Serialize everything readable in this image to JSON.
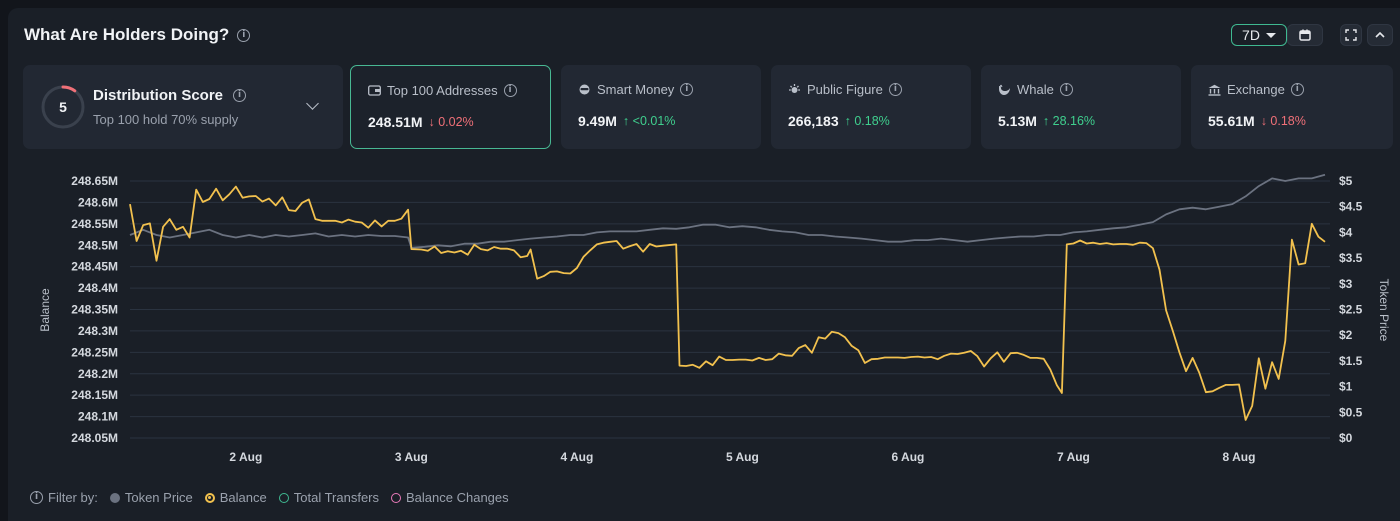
{
  "header": {
    "title": "What Are Holders Doing?",
    "range_label": "7D"
  },
  "distribution": {
    "score": "5",
    "title": "Distribution Score",
    "subtitle": "Top 100 hold 70% supply",
    "score_fraction": 0.1
  },
  "cards": [
    {
      "icon": "wallet-icon",
      "label": "Top 100 Addresses",
      "value": "248.51M",
      "change": "↓ 0.02%",
      "dir": "down"
    },
    {
      "icon": "smart-money-icon",
      "label": "Smart Money",
      "value": "9.49M",
      "change": "↑ <0.01%",
      "dir": "up"
    },
    {
      "icon": "public-figure-icon",
      "label": "Public Figure",
      "value": "266,183",
      "change": "↑ 0.18%",
      "dir": "up"
    },
    {
      "icon": "whale-icon",
      "label": "Whale",
      "value": "5.13M",
      "change": "↑ 28.16%",
      "dir": "up"
    },
    {
      "icon": "exchange-icon",
      "label": "Exchange",
      "value": "55.61M",
      "change": "↓ 0.18%",
      "dir": "down"
    }
  ],
  "legend": {
    "filter_label": "Filter by:",
    "items": [
      {
        "label": "Token Price",
        "color": "#6b7280",
        "active": true
      },
      {
        "label": "Balance",
        "color": "#f2c14e",
        "active": true
      },
      {
        "label": "Total Transfers",
        "color": "#3fb991",
        "active": false
      },
      {
        "label": "Balance Changes",
        "color": "#e879b9",
        "active": false
      }
    ]
  },
  "chart_data": {
    "type": "line",
    "ylabel": "Balance",
    "y2label": "Token Price",
    "ylim": [
      248.05,
      248.65
    ],
    "y2lim": [
      0,
      5
    ],
    "yticks": [
      "248.05M",
      "248.1M",
      "248.15M",
      "248.2M",
      "248.25M",
      "248.3M",
      "248.35M",
      "248.4M",
      "248.45M",
      "248.5M",
      "248.55M",
      "248.6M",
      "248.65M"
    ],
    "y2ticks": [
      "$0",
      "$0.5",
      "$1",
      "$1.5",
      "$2",
      "$2.5",
      "$3",
      "$3.5",
      "$4",
      "$4.5",
      "$5"
    ],
    "xticks": [
      "2 Aug",
      "3 Aug",
      "4 Aug",
      "5 Aug",
      "6 Aug",
      "7 Aug",
      "8 Aug"
    ],
    "xlim": [
      1.3,
      8.55
    ],
    "grid": true,
    "series": [
      {
        "name": "Balance",
        "axis": "left",
        "color": "#f2c14e",
        "points": [
          [
            1.3,
            248.596
          ],
          [
            1.34,
            248.51
          ],
          [
            1.38,
            248.547
          ],
          [
            1.42,
            248.551
          ],
          [
            1.46,
            248.464
          ],
          [
            1.5,
            248.543
          ],
          [
            1.54,
            248.561
          ],
          [
            1.58,
            248.536
          ],
          [
            1.62,
            248.543
          ],
          [
            1.66,
            248.518
          ],
          [
            1.7,
            248.63
          ],
          [
            1.74,
            248.601
          ],
          [
            1.78,
            248.608
          ],
          [
            1.82,
            248.632
          ],
          [
            1.86,
            248.605
          ],
          [
            1.9,
            248.619
          ],
          [
            1.94,
            248.637
          ],
          [
            1.98,
            248.611
          ],
          [
            2.02,
            248.614
          ],
          [
            2.06,
            248.615
          ],
          [
            2.1,
            248.602
          ],
          [
            2.14,
            248.609
          ],
          [
            2.18,
            248.593
          ],
          [
            2.22,
            248.612
          ],
          [
            2.26,
            248.582
          ],
          [
            2.3,
            248.58
          ],
          [
            2.34,
            248.599
          ],
          [
            2.38,
            248.607
          ],
          [
            2.42,
            248.561
          ],
          [
            2.46,
            248.557
          ],
          [
            2.5,
            248.557
          ],
          [
            2.54,
            248.557
          ],
          [
            2.58,
            248.553
          ],
          [
            2.62,
            248.56
          ],
          [
            2.66,
            248.555
          ],
          [
            2.7,
            248.553
          ],
          [
            2.74,
            248.541
          ],
          [
            2.78,
            248.558
          ],
          [
            2.82,
            248.544
          ],
          [
            2.86,
            248.557
          ],
          [
            2.9,
            248.557
          ],
          [
            2.94,
            248.562
          ],
          [
            2.98,
            248.583
          ],
          [
            3.0,
            248.491
          ],
          [
            3.06,
            248.49
          ],
          [
            3.1,
            248.487
          ],
          [
            3.14,
            248.497
          ],
          [
            3.18,
            248.482
          ],
          [
            3.22,
            248.486
          ],
          [
            3.26,
            248.483
          ],
          [
            3.3,
            248.487
          ],
          [
            3.34,
            248.478
          ],
          [
            3.38,
            248.501
          ],
          [
            3.42,
            248.491
          ],
          [
            3.46,
            248.488
          ],
          [
            3.5,
            248.496
          ],
          [
            3.54,
            248.492
          ],
          [
            3.58,
            248.492
          ],
          [
            3.62,
            248.488
          ],
          [
            3.66,
            248.472
          ],
          [
            3.7,
            248.475
          ],
          [
            3.72,
            248.49
          ],
          [
            3.76,
            248.422
          ],
          [
            3.8,
            248.428
          ],
          [
            3.84,
            248.438
          ],
          [
            3.88,
            248.439
          ],
          [
            3.92,
            248.435
          ],
          [
            3.96,
            248.434
          ],
          [
            4.0,
            248.447
          ],
          [
            4.04,
            248.473
          ],
          [
            4.08,
            248.488
          ],
          [
            4.12,
            248.502
          ],
          [
            4.16,
            248.506
          ],
          [
            4.2,
            248.508
          ],
          [
            4.24,
            248.51
          ],
          [
            4.28,
            248.492
          ],
          [
            4.32,
            248.498
          ],
          [
            4.36,
            248.503
          ],
          [
            4.4,
            248.485
          ],
          [
            4.44,
            248.503
          ],
          [
            4.48,
            248.497
          ],
          [
            4.52,
            248.499
          ],
          [
            4.6,
            248.502
          ],
          [
            4.62,
            248.219
          ],
          [
            4.66,
            248.218
          ],
          [
            4.7,
            248.221
          ],
          [
            4.74,
            248.214
          ],
          [
            4.78,
            248.229
          ],
          [
            4.82,
            248.22
          ],
          [
            4.86,
            248.24
          ],
          [
            4.9,
            248.232
          ],
          [
            4.94,
            248.232
          ],
          [
            4.98,
            248.233
          ],
          [
            5.02,
            248.233
          ],
          [
            5.06,
            248.231
          ],
          [
            5.1,
            248.237
          ],
          [
            5.14,
            248.232
          ],
          [
            5.18,
            248.234
          ],
          [
            5.22,
            248.247
          ],
          [
            5.26,
            248.243
          ],
          [
            5.3,
            248.242
          ],
          [
            5.34,
            248.26
          ],
          [
            5.38,
            248.267
          ],
          [
            5.42,
            248.249
          ],
          [
            5.46,
            248.285
          ],
          [
            5.5,
            248.282
          ],
          [
            5.54,
            248.298
          ],
          [
            5.58,
            248.295
          ],
          [
            5.62,
            248.285
          ],
          [
            5.66,
            248.265
          ],
          [
            5.7,
            248.255
          ],
          [
            5.74,
            248.225
          ],
          [
            5.78,
            248.234
          ],
          [
            5.82,
            248.235
          ],
          [
            5.86,
            248.238
          ],
          [
            5.9,
            248.238
          ],
          [
            5.94,
            248.238
          ],
          [
            5.98,
            248.237
          ],
          [
            6.02,
            248.239
          ],
          [
            6.06,
            248.24
          ],
          [
            6.1,
            248.238
          ],
          [
            6.14,
            248.239
          ],
          [
            6.18,
            248.234
          ],
          [
            6.22,
            248.242
          ],
          [
            6.26,
            248.247
          ],
          [
            6.3,
            248.246
          ],
          [
            6.34,
            248.249
          ],
          [
            6.38,
            248.253
          ],
          [
            6.42,
            248.241
          ],
          [
            6.46,
            248.217
          ],
          [
            6.5,
            248.236
          ],
          [
            6.54,
            248.25
          ],
          [
            6.58,
            248.228
          ],
          [
            6.62,
            248.248
          ],
          [
            6.66,
            248.249
          ],
          [
            6.7,
            248.244
          ],
          [
            6.74,
            248.237
          ],
          [
            6.78,
            248.237
          ],
          [
            6.82,
            248.235
          ],
          [
            6.86,
            248.21
          ],
          [
            6.9,
            248.173
          ],
          [
            6.93,
            248.155
          ],
          [
            6.96,
            248.502
          ],
          [
            7.0,
            248.504
          ],
          [
            7.04,
            248.511
          ],
          [
            7.08,
            248.504
          ],
          [
            7.12,
            248.506
          ],
          [
            7.16,
            248.503
          ],
          [
            7.2,
            248.505
          ],
          [
            7.24,
            248.502
          ],
          [
            7.28,
            248.503
          ],
          [
            7.32,
            248.503
          ],
          [
            7.36,
            248.501
          ],
          [
            7.4,
            248.506
          ],
          [
            7.44,
            248.505
          ],
          [
            7.48,
            248.493
          ],
          [
            7.52,
            248.443
          ],
          [
            7.56,
            248.348
          ],
          [
            7.6,
            248.3
          ],
          [
            7.64,
            248.25
          ],
          [
            7.68,
            248.206
          ],
          [
            7.72,
            248.237
          ],
          [
            7.76,
            248.203
          ],
          [
            7.8,
            248.157
          ],
          [
            7.84,
            248.159
          ],
          [
            7.88,
            248.167
          ],
          [
            7.92,
            248.174
          ],
          [
            7.96,
            248.174
          ],
          [
            8.0,
            248.175
          ],
          [
            8.04,
            248.092
          ],
          [
            8.08,
            248.125
          ],
          [
            8.12,
            248.236
          ],
          [
            8.16,
            248.165
          ],
          [
            8.2,
            248.227
          ],
          [
            8.24,
            248.188
          ],
          [
            8.28,
            248.277
          ],
          [
            8.32,
            248.513
          ],
          [
            8.36,
            248.455
          ],
          [
            8.4,
            248.458
          ],
          [
            8.44,
            248.55
          ],
          [
            8.48,
            248.52
          ],
          [
            8.52,
            248.508
          ]
        ]
      },
      {
        "name": "Token Price",
        "axis": "right",
        "color": "#6b7280",
        "points": [
          [
            1.3,
            3.95
          ],
          [
            1.38,
            4.05
          ],
          [
            1.46,
            3.95
          ],
          [
            1.54,
            3.9
          ],
          [
            1.62,
            3.95
          ],
          [
            1.7,
            4.0
          ],
          [
            1.78,
            4.05
          ],
          [
            1.86,
            3.95
          ],
          [
            1.94,
            3.9
          ],
          [
            2.02,
            3.95
          ],
          [
            2.1,
            3.9
          ],
          [
            2.18,
            3.95
          ],
          [
            2.26,
            3.92
          ],
          [
            2.34,
            3.95
          ],
          [
            2.42,
            3.98
          ],
          [
            2.5,
            3.92
          ],
          [
            2.58,
            3.95
          ],
          [
            2.66,
            3.92
          ],
          [
            2.74,
            3.95
          ],
          [
            2.82,
            3.93
          ],
          [
            2.9,
            3.93
          ],
          [
            2.98,
            3.9
          ],
          [
            3.0,
            3.7
          ],
          [
            3.08,
            3.72
          ],
          [
            3.16,
            3.75
          ],
          [
            3.24,
            3.73
          ],
          [
            3.32,
            3.78
          ],
          [
            3.4,
            3.78
          ],
          [
            3.48,
            3.82
          ],
          [
            3.56,
            3.82
          ],
          [
            3.64,
            3.85
          ],
          [
            3.72,
            3.88
          ],
          [
            3.8,
            3.9
          ],
          [
            3.88,
            3.92
          ],
          [
            3.96,
            3.95
          ],
          [
            4.04,
            3.95
          ],
          [
            4.12,
            4.0
          ],
          [
            4.2,
            4.02
          ],
          [
            4.28,
            4.02
          ],
          [
            4.36,
            4.02
          ],
          [
            4.44,
            4.05
          ],
          [
            4.52,
            4.08
          ],
          [
            4.6,
            4.07
          ],
          [
            4.68,
            4.1
          ],
          [
            4.76,
            4.15
          ],
          [
            4.84,
            4.15
          ],
          [
            4.92,
            4.1
          ],
          [
            5.0,
            4.12
          ],
          [
            5.08,
            4.1
          ],
          [
            5.16,
            4.05
          ],
          [
            5.24,
            4.02
          ],
          [
            5.32,
            4.0
          ],
          [
            5.4,
            3.95
          ],
          [
            5.48,
            3.95
          ],
          [
            5.56,
            3.92
          ],
          [
            5.64,
            3.9
          ],
          [
            5.72,
            3.88
          ],
          [
            5.8,
            3.85
          ],
          [
            5.88,
            3.82
          ],
          [
            5.96,
            3.82
          ],
          [
            6.04,
            3.85
          ],
          [
            6.12,
            3.85
          ],
          [
            6.2,
            3.88
          ],
          [
            6.28,
            3.85
          ],
          [
            6.36,
            3.82
          ],
          [
            6.44,
            3.85
          ],
          [
            6.52,
            3.88
          ],
          [
            6.6,
            3.9
          ],
          [
            6.68,
            3.92
          ],
          [
            6.76,
            3.92
          ],
          [
            6.84,
            3.95
          ],
          [
            6.92,
            3.95
          ],
          [
            7.0,
            4.0
          ],
          [
            7.08,
            4.02
          ],
          [
            7.16,
            4.05
          ],
          [
            7.24,
            4.08
          ],
          [
            7.32,
            4.1
          ],
          [
            7.4,
            4.15
          ],
          [
            7.48,
            4.2
          ],
          [
            7.56,
            4.35
          ],
          [
            7.64,
            4.45
          ],
          [
            7.72,
            4.48
          ],
          [
            7.8,
            4.45
          ],
          [
            7.88,
            4.5
          ],
          [
            7.96,
            4.55
          ],
          [
            8.04,
            4.7
          ],
          [
            8.12,
            4.9
          ],
          [
            8.2,
            5.05
          ],
          [
            8.28,
            5.0
          ],
          [
            8.36,
            5.05
          ],
          [
            8.44,
            5.05
          ],
          [
            8.52,
            5.12
          ]
        ]
      }
    ]
  }
}
